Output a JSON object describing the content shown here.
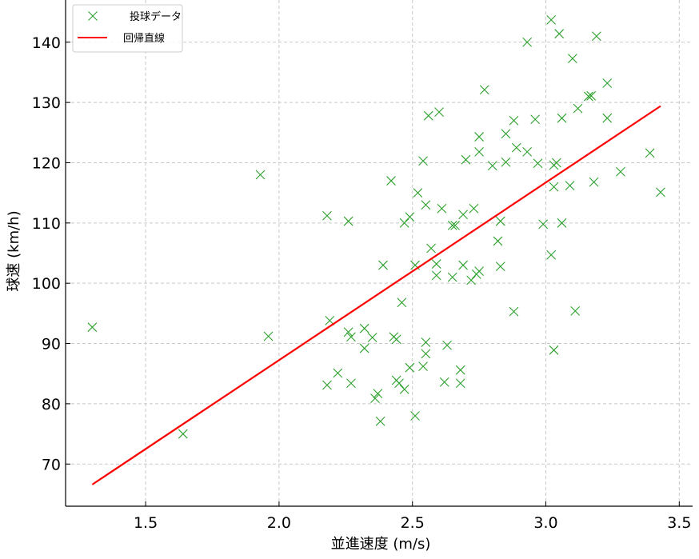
{
  "chart_data": {
    "type": "scatter",
    "xlabel": "並進速度 (m/s)",
    "ylabel": "球速 (km/h)",
    "xlim": [
      1.2,
      3.55
    ],
    "ylim": [
      63,
      147
    ],
    "x_ticks": [
      1.5,
      2.0,
      2.5,
      3.0,
      3.5
    ],
    "x_tick_labels": [
      "1.5",
      "2.0",
      "2.5",
      "3.0",
      "3.5"
    ],
    "y_ticks": [
      70,
      80,
      90,
      100,
      110,
      120,
      130,
      140
    ],
    "y_tick_labels": [
      "70",
      "80",
      "90",
      "100",
      "110",
      "120",
      "130",
      "140"
    ],
    "grid": true,
    "legend_position": "top-left",
    "series": [
      {
        "name": "投球データ",
        "kind": "scatter",
        "marker": "x",
        "color": "#2ca02c",
        "points": [
          [
            1.3,
            92.7
          ],
          [
            1.64,
            75.0
          ],
          [
            1.93,
            118.0
          ],
          [
            1.96,
            91.2
          ],
          [
            2.18,
            111.2
          ],
          [
            2.18,
            83.1
          ],
          [
            2.19,
            93.8
          ],
          [
            2.22,
            85.1
          ],
          [
            2.26,
            110.3
          ],
          [
            2.26,
            91.9
          ],
          [
            2.27,
            91.1
          ],
          [
            2.27,
            83.4
          ],
          [
            2.32,
            92.5
          ],
          [
            2.32,
            89.2
          ],
          [
            2.35,
            91.0
          ],
          [
            2.36,
            80.9
          ],
          [
            2.37,
            81.7
          ],
          [
            2.38,
            77.1
          ],
          [
            2.39,
            103.0
          ],
          [
            2.42,
            117.0
          ],
          [
            2.43,
            91.1
          ],
          [
            2.44,
            90.7
          ],
          [
            2.44,
            83.9
          ],
          [
            2.45,
            83.4
          ],
          [
            2.46,
            96.8
          ],
          [
            2.47,
            110.0
          ],
          [
            2.47,
            82.4
          ],
          [
            2.49,
            111.0
          ],
          [
            2.49,
            86.0
          ],
          [
            2.51,
            103.0
          ],
          [
            2.51,
            78.0
          ],
          [
            2.52,
            115.0
          ],
          [
            2.54,
            120.3
          ],
          [
            2.54,
            86.2
          ],
          [
            2.55,
            113.0
          ],
          [
            2.55,
            88.3
          ],
          [
            2.55,
            90.2
          ],
          [
            2.56,
            127.8
          ],
          [
            2.57,
            105.8
          ],
          [
            2.59,
            101.3
          ],
          [
            2.59,
            103.2
          ],
          [
            2.6,
            128.4
          ],
          [
            2.61,
            112.4
          ],
          [
            2.62,
            83.6
          ],
          [
            2.63,
            89.7
          ],
          [
            2.65,
            109.6
          ],
          [
            2.65,
            101.0
          ],
          [
            2.66,
            109.6
          ],
          [
            2.68,
            83.4
          ],
          [
            2.68,
            85.6
          ],
          [
            2.69,
            111.4
          ],
          [
            2.69,
            103.0
          ],
          [
            2.7,
            120.5
          ],
          [
            2.72,
            100.5
          ],
          [
            2.73,
            112.4
          ],
          [
            2.74,
            101.5
          ],
          [
            2.75,
            124.3
          ],
          [
            2.75,
            121.8
          ],
          [
            2.75,
            102.0
          ],
          [
            2.77,
            132.1
          ],
          [
            2.8,
            119.5
          ],
          [
            2.82,
            107.0
          ],
          [
            2.83,
            102.8
          ],
          [
            2.83,
            110.3
          ],
          [
            2.85,
            124.8
          ],
          [
            2.85,
            120.1
          ],
          [
            2.88,
            127.0
          ],
          [
            2.88,
            95.3
          ],
          [
            2.89,
            122.5
          ],
          [
            2.93,
            121.8
          ],
          [
            2.93,
            140.0
          ],
          [
            2.96,
            127.2
          ],
          [
            2.97,
            119.9
          ],
          [
            2.99,
            109.8
          ],
          [
            3.02,
            143.7
          ],
          [
            3.02,
            104.7
          ],
          [
            3.03,
            119.6
          ],
          [
            3.03,
            116.0
          ],
          [
            3.03,
            88.9
          ],
          [
            3.04,
            120.0
          ],
          [
            3.05,
            141.4
          ],
          [
            3.06,
            127.4
          ],
          [
            3.06,
            110.0
          ],
          [
            3.09,
            116.2
          ],
          [
            3.1,
            137.3
          ],
          [
            3.11,
            95.4
          ],
          [
            3.12,
            129.0
          ],
          [
            3.16,
            131.0
          ],
          [
            3.17,
            131.1
          ],
          [
            3.18,
            116.8
          ],
          [
            3.19,
            141.0
          ],
          [
            3.23,
            133.2
          ],
          [
            3.23,
            127.4
          ],
          [
            3.28,
            118.5
          ],
          [
            3.39,
            121.6
          ],
          [
            3.43,
            115.1
          ]
        ]
      },
      {
        "name": "回帰直線",
        "kind": "line",
        "color": "#ff0000",
        "points": [
          [
            1.3,
            66.6
          ],
          [
            3.43,
            129.4
          ]
        ]
      }
    ]
  }
}
